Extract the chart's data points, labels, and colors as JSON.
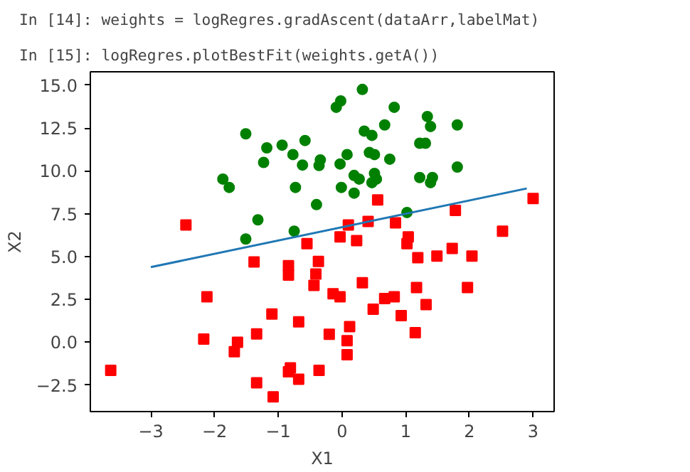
{
  "chart_data": {
    "type": "scatter",
    "annotations": [
      "In [14]: weights = logRegres.gradAscent(dataArr,labelMat)",
      "In [15]: logRegres.plotBestFit(weights.getA())"
    ],
    "xlabel": "X1",
    "ylabel": "X2",
    "xlim": [
      -3.95,
      3.33
    ],
    "ylim": [
      -4.05,
      15.78
    ],
    "xticks": [
      {
        "value": -3,
        "label": "−3"
      },
      {
        "value": -2,
        "label": "−2"
      },
      {
        "value": -1,
        "label": "−1"
      },
      0,
      1,
      2,
      3
    ],
    "yticks": [
      {
        "value": -2.5,
        "label": "−2.5"
      },
      {
        "value": 0,
        "label": "0.0"
      },
      {
        "value": 2.5,
        "label": "2.5"
      },
      {
        "value": 5,
        "label": "5.0"
      },
      {
        "value": 7.5,
        "label": "7.5"
      },
      {
        "value": 10,
        "label": "10.0"
      },
      {
        "value": 12.5,
        "label": "12.5"
      },
      {
        "value": 15,
        "label": "15.0"
      }
    ],
    "grid": false,
    "series": [
      {
        "marker": "circle",
        "color": "#008000",
        "x": [
          -1.51,
          -1.87,
          -1.77,
          -1.18,
          -1.23,
          -0.94,
          -0.77,
          -0.58,
          -0.62,
          -0.73,
          -0.4,
          -1.32,
          -1.51,
          -0.75,
          -0.34,
          0.32,
          -0.02,
          -0.09,
          0.82,
          1.34,
          1.39,
          1.81,
          0.67,
          0.35,
          0.47,
          1.22,
          1.31,
          0.43,
          0.51,
          0.08,
          0.75,
          -0.36,
          -0.03,
          1.81,
          0.19,
          0.27,
          0.51,
          0.54,
          0.47,
          1.22,
          1.42,
          1.39,
          -0.01,
          0.19,
          1.02
        ],
        "values": [
          12.16,
          9.52,
          9.03,
          11.34,
          10.49,
          11.5,
          10.95,
          11.77,
          10.34,
          9.03,
          8.03,
          7.14,
          6.02,
          6.48,
          10.64,
          14.75,
          14.08,
          13.71,
          13.71,
          13.17,
          12.59,
          12.68,
          12.68,
          12.32,
          12.07,
          11.61,
          11.61,
          11.07,
          10.95,
          10.95,
          10.68,
          10.31,
          10.4,
          10.22,
          9.73,
          9.52,
          9.85,
          9.52,
          9.31,
          9.61,
          9.61,
          9.31,
          9.03,
          8.7,
          7.57
        ]
      },
      {
        "marker": "square",
        "color": "#ff0000",
        "x": [
          -2.45,
          -1.38,
          -0.84,
          -0.55,
          0.56,
          0.1,
          0.41,
          0.84,
          1.78,
          3.0,
          -0.03,
          0.23,
          1.04,
          1.02,
          2.52,
          1.19,
          1.49,
          1.73,
          2.04,
          -0.84,
          -0.41,
          -0.44,
          -0.37,
          -2.12,
          -1.1,
          -0.68,
          -1.34,
          -2.17,
          -1.64,
          -1.69,
          -3.63,
          -0.81,
          -0.84,
          -0.68,
          -0.36,
          -1.34,
          -1.08,
          0.32,
          -0.14,
          -0.03,
          0.67,
          0.82,
          1.17,
          1.97,
          0.49,
          1.32,
          0.93,
          0.12,
          -0.2,
          0.08,
          1.15,
          0.08
        ],
        "values": [
          6.84,
          4.68,
          4.47,
          5.75,
          8.3,
          6.84,
          7.05,
          6.96,
          7.69,
          8.39,
          6.14,
          5.93,
          6.14,
          5.75,
          6.48,
          4.93,
          5.02,
          5.47,
          5.02,
          3.92,
          3.98,
          3.31,
          4.71,
          2.65,
          1.64,
          1.19,
          0.48,
          0.18,
          0.0,
          -0.55,
          -1.64,
          -1.5,
          -1.73,
          -2.16,
          -1.64,
          -2.37,
          -3.19,
          3.47,
          2.83,
          2.65,
          2.55,
          2.65,
          3.19,
          3.19,
          1.92,
          2.19,
          1.55,
          0.91,
          0.46,
          0.09,
          0.55,
          -0.73
        ]
      },
      {
        "type": "line",
        "color": "#1f77b4",
        "x": [
          -3,
          2.9
        ],
        "values": [
          4.38,
          8.97
        ]
      }
    ]
  }
}
